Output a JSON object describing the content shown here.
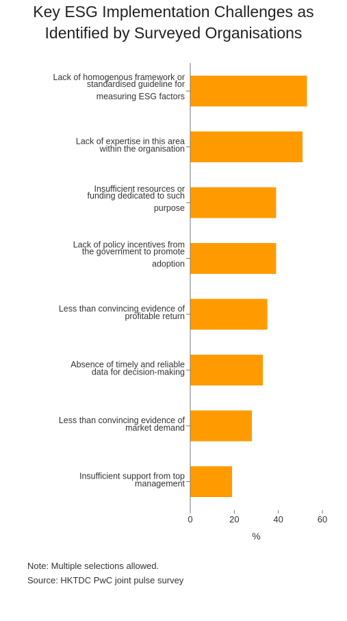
{
  "chart_data": {
    "type": "bar",
    "orientation": "horizontal",
    "title": [
      "Key ESG Implementation Challenges as",
      "Identified by Surveyed Organisations"
    ],
    "categories": [
      [
        "Lack of homogenous framework or",
        "standardised guideline for",
        "measuring ESG factors"
      ],
      [
        "Lack of expertise in this area",
        "within the organisation"
      ],
      [
        "Insufficient resources or",
        "funding dedicated to such",
        "purpose"
      ],
      [
        "Lack of policy incentives from",
        "the government to promote",
        "adoption"
      ],
      [
        "Less than convincing evidence of",
        "profitable return"
      ],
      [
        "Absence of timely and reliable",
        "data for decision-making"
      ],
      [
        "Less than convincing evidence of",
        "market demand"
      ],
      [
        "Insufficient support from top",
        "management"
      ]
    ],
    "values": [
      53,
      51,
      39,
      39,
      35,
      33,
      28,
      19
    ],
    "xlabel": "%",
    "xlim": [
      0,
      60
    ],
    "xticks": [
      0,
      20,
      40,
      60
    ],
    "bar_color": "#FF9B00",
    "grid": false
  },
  "notes": {
    "note": "Note: Multiple selections allowed.",
    "source": "Source: HKTDC PwC joint pulse survey"
  }
}
